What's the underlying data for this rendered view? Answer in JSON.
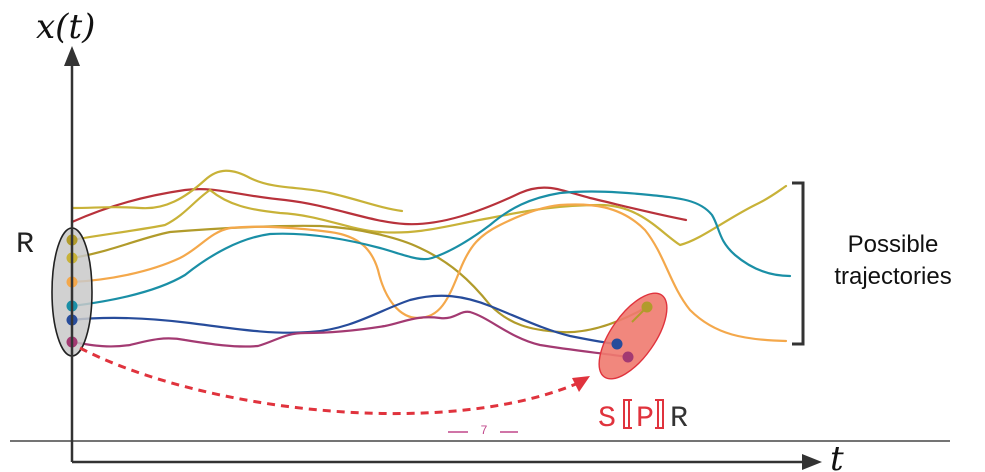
{
  "axes": {
    "y_label": "x(t)",
    "x_label": "t"
  },
  "set_label": "R",
  "target_prefix": "S",
  "target_inner": "P",
  "target_suffix": "R",
  "brace_label_line1": "Possible",
  "brace_label_line2": "trajectories",
  "page_number": "7",
  "colors": {
    "gold": "#c8b238",
    "olive": "#b19b2b",
    "orange": "#f4a84b",
    "teal": "#1a8fa6",
    "navy": "#274c9b",
    "magenta": "#a33a72",
    "crimson": "#b8323b",
    "dashed_arrow": "#e0333d",
    "target_fill": "#f07a6f",
    "ellipse_fill": "#c9c9c9",
    "bracket": "#333333"
  }
}
